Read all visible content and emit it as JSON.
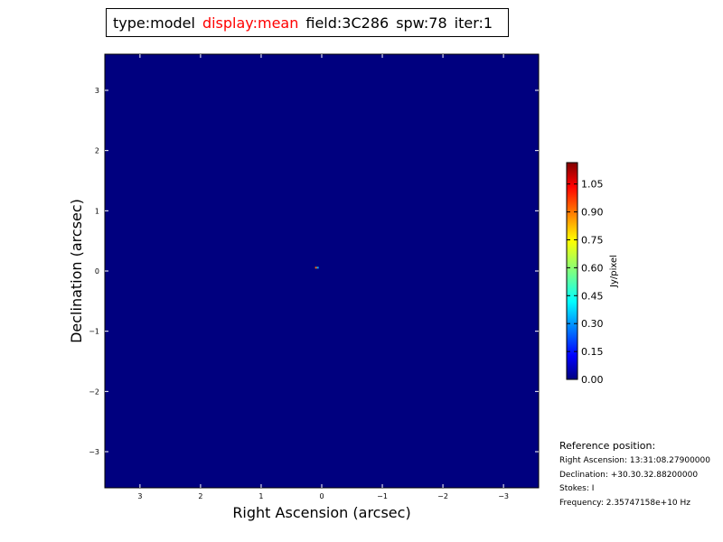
{
  "title": {
    "parts": [
      {
        "text": "type:model",
        "color": "#000000"
      },
      {
        "text": "display:mean",
        "color": "#ff0000"
      },
      {
        "text": "field:3C286",
        "color": "#000000"
      },
      {
        "text": "spw:78",
        "color": "#000000"
      },
      {
        "text": "iter:1",
        "color": "#000000"
      }
    ]
  },
  "chart_data": {
    "type": "heatmap",
    "xlabel": "Right Ascension (arcsec)",
    "ylabel": "Declination (arcsec)",
    "xlim": [
      3.58,
      -3.58
    ],
    "ylim": [
      -3.6,
      3.6
    ],
    "xticks": [
      3,
      2,
      1,
      0,
      -1,
      -2,
      -3
    ],
    "yticks": [
      3,
      2,
      1,
      0,
      -1,
      -2,
      -3
    ],
    "xtick_labels": [
      "3",
      "2",
      "1",
      "0",
      "−1",
      "−2",
      "−3"
    ],
    "ytick_labels": [
      "3",
      "2",
      "1",
      "0",
      "−1",
      "−2",
      "−3"
    ],
    "background_value": 0.0,
    "background_color": "#00007f",
    "pixels": [
      {
        "x": 0.11,
        "y": 0.07,
        "value": 0.9,
        "color": "#ff6a00"
      },
      {
        "x": 0.08,
        "y": 0.07,
        "value": 0.35,
        "color": "#00a8ff"
      }
    ],
    "colorbar": {
      "label": "Jy/pixel",
      "min": 0.0,
      "max": 1.165,
      "colormap": "jet",
      "ticks": [
        0.0,
        0.15,
        0.3,
        0.45,
        0.6,
        0.75,
        0.9,
        1.05
      ],
      "tick_labels": [
        "0.00",
        "0.15",
        "0.30",
        "0.45",
        "0.60",
        "0.75",
        "0.90",
        "1.05"
      ]
    }
  },
  "reference": {
    "heading": "Reference position:",
    "ra": "Right Ascension: 13:31:08.27900000",
    "dec": "Declination: +30.30.32.88200000",
    "stokes": "Stokes: I",
    "freq": "Frequency: 2.35747158e+10 Hz"
  }
}
